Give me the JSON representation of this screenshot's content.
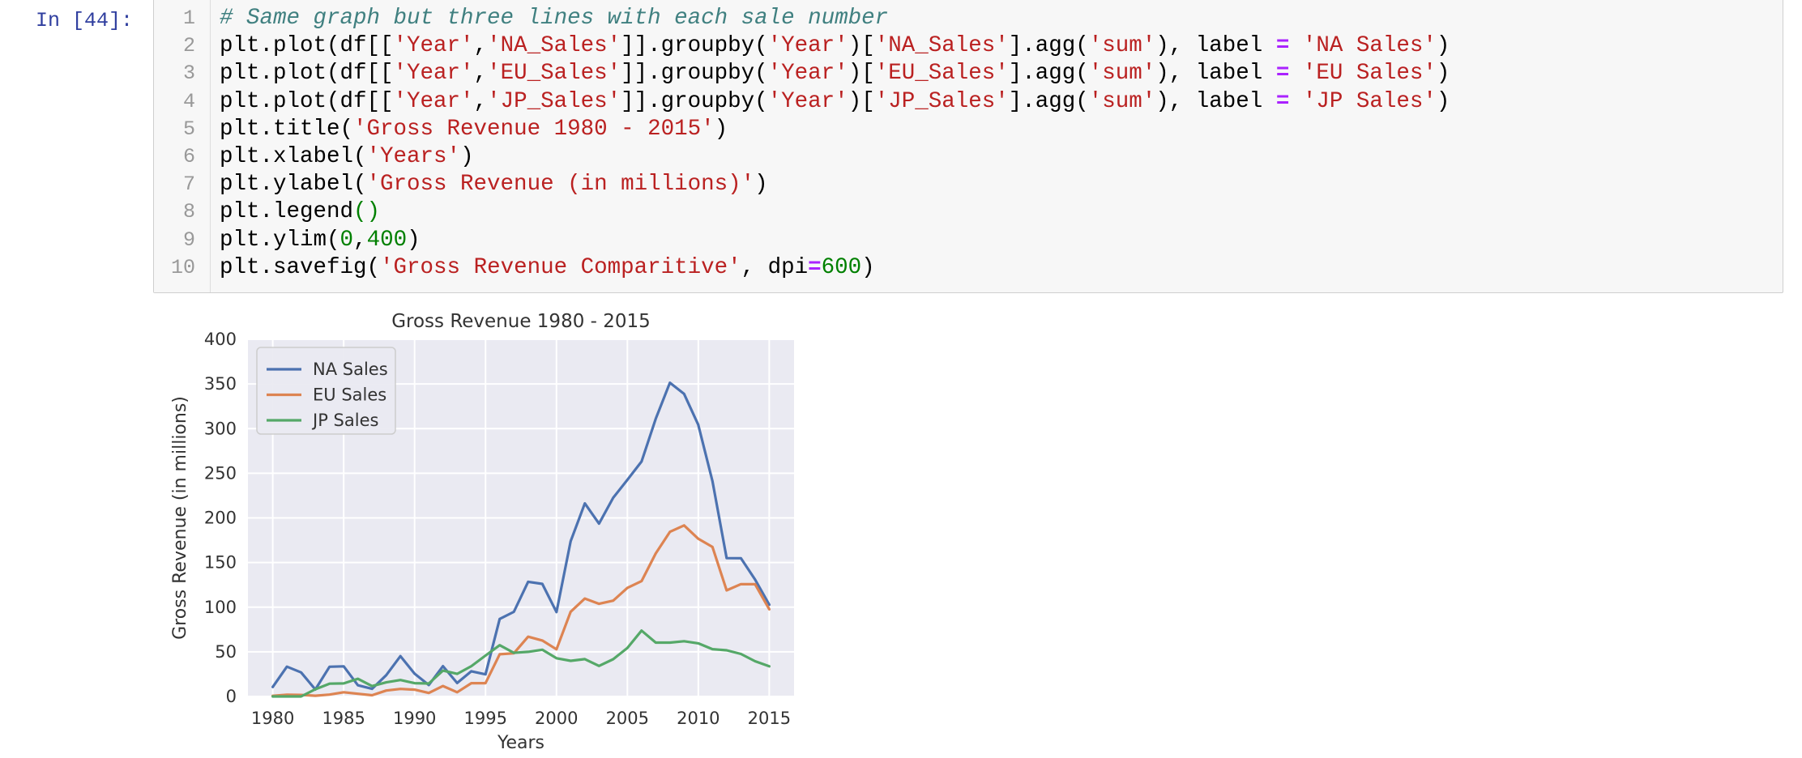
{
  "cell": {
    "prompt": "In [44]:",
    "line_numbers": [
      "1",
      "2",
      "3",
      "4",
      "5",
      "6",
      "7",
      "8",
      "9",
      "10"
    ],
    "code_lines": [
      [
        {
          "t": "comment",
          "v": "# Same graph but three lines with each sale number"
        }
      ],
      [
        {
          "t": "plain",
          "v": "plt.plot(df[["
        },
        {
          "t": "str",
          "v": "'Year'"
        },
        {
          "t": "plain",
          "v": ","
        },
        {
          "t": "str",
          "v": "'NA_Sales'"
        },
        {
          "t": "plain",
          "v": "]].groupby("
        },
        {
          "t": "str",
          "v": "'Year'"
        },
        {
          "t": "plain",
          "v": ")["
        },
        {
          "t": "str",
          "v": "'NA_Sales'"
        },
        {
          "t": "plain",
          "v": "].agg("
        },
        {
          "t": "str",
          "v": "'sum'"
        },
        {
          "t": "plain",
          "v": "), label "
        },
        {
          "t": "op",
          "v": "="
        },
        {
          "t": "plain",
          "v": " "
        },
        {
          "t": "str",
          "v": "'NA Sales'"
        },
        {
          "t": "plain",
          "v": ")"
        }
      ],
      [
        {
          "t": "plain",
          "v": "plt.plot(df[["
        },
        {
          "t": "str",
          "v": "'Year'"
        },
        {
          "t": "plain",
          "v": ","
        },
        {
          "t": "str",
          "v": "'EU_Sales'"
        },
        {
          "t": "plain",
          "v": "]].groupby("
        },
        {
          "t": "str",
          "v": "'Year'"
        },
        {
          "t": "plain",
          "v": ")["
        },
        {
          "t": "str",
          "v": "'EU_Sales'"
        },
        {
          "t": "plain",
          "v": "].agg("
        },
        {
          "t": "str",
          "v": "'sum'"
        },
        {
          "t": "plain",
          "v": "), label "
        },
        {
          "t": "op",
          "v": "="
        },
        {
          "t": "plain",
          "v": " "
        },
        {
          "t": "str",
          "v": "'EU Sales'"
        },
        {
          "t": "plain",
          "v": ")"
        }
      ],
      [
        {
          "t": "plain",
          "v": "plt.plot(df[["
        },
        {
          "t": "str",
          "v": "'Year'"
        },
        {
          "t": "plain",
          "v": ","
        },
        {
          "t": "str",
          "v": "'JP_Sales'"
        },
        {
          "t": "plain",
          "v": "]].groupby("
        },
        {
          "t": "str",
          "v": "'Year'"
        },
        {
          "t": "plain",
          "v": ")["
        },
        {
          "t": "str",
          "v": "'JP_Sales'"
        },
        {
          "t": "plain",
          "v": "].agg("
        },
        {
          "t": "str",
          "v": "'sum'"
        },
        {
          "t": "plain",
          "v": "), label "
        },
        {
          "t": "op",
          "v": "="
        },
        {
          "t": "plain",
          "v": " "
        },
        {
          "t": "str",
          "v": "'JP Sales'"
        },
        {
          "t": "plain",
          "v": ")"
        }
      ],
      [
        {
          "t": "plain",
          "v": "plt.title("
        },
        {
          "t": "str",
          "v": "'Gross Revenue 1980 - 2015'"
        },
        {
          "t": "plain",
          "v": ")"
        }
      ],
      [
        {
          "t": "plain",
          "v": "plt.xlabel("
        },
        {
          "t": "str",
          "v": "'Years'"
        },
        {
          "t": "plain",
          "v": ")"
        }
      ],
      [
        {
          "t": "plain",
          "v": "plt.ylabel("
        },
        {
          "t": "str",
          "v": "'Gross Revenue (in millions)'"
        },
        {
          "t": "plain",
          "v": ")"
        }
      ],
      [
        {
          "t": "plain",
          "v": "plt.legend"
        },
        {
          "t": "paren",
          "v": "()"
        }
      ],
      [
        {
          "t": "plain",
          "v": "plt.ylim("
        },
        {
          "t": "num",
          "v": "0"
        },
        {
          "t": "plain",
          "v": ","
        },
        {
          "t": "num",
          "v": "400"
        },
        {
          "t": "plain",
          "v": ")"
        }
      ],
      [
        {
          "t": "plain",
          "v": "plt.savefig("
        },
        {
          "t": "str",
          "v": "'Gross Revenue Comparitive'"
        },
        {
          "t": "plain",
          "v": ", dpi"
        },
        {
          "t": "op",
          "v": "="
        },
        {
          "t": "num",
          "v": "600"
        },
        {
          "t": "plain",
          "v": ")"
        }
      ]
    ]
  },
  "chart_data": {
    "type": "line",
    "title": "Gross Revenue 1980 - 2015",
    "xlabel": "Years",
    "ylabel": "Gross Revenue (in millions)",
    "xlim": [
      1978.25,
      2016.75
    ],
    "ylim": [
      0,
      400
    ],
    "xticks": [
      1980,
      1985,
      1990,
      1995,
      2000,
      2005,
      2010,
      2015
    ],
    "yticks": [
      0,
      50,
      100,
      150,
      200,
      250,
      300,
      350,
      400
    ],
    "grid": true,
    "legend_position": "upper-left",
    "background": "#eaeaf2",
    "x": [
      1980,
      1981,
      1982,
      1983,
      1984,
      1985,
      1986,
      1987,
      1988,
      1989,
      1990,
      1991,
      1992,
      1993,
      1994,
      1995,
      1996,
      1997,
      1998,
      1999,
      2000,
      2001,
      2002,
      2003,
      2004,
      2005,
      2006,
      2007,
      2008,
      2009,
      2010,
      2011,
      2012,
      2013,
      2014,
      2015
    ],
    "series": [
      {
        "name": "NA Sales",
        "color": "#4c72b0",
        "values": [
          10.6,
          33.4,
          26.9,
          7.8,
          33.3,
          33.7,
          12.5,
          8.5,
          23.9,
          45.2,
          25.5,
          12.8,
          33.9,
          15.1,
          28.2,
          24.8,
          86.8,
          94.8,
          128.4,
          126.1,
          94.5,
          173.9,
          216.2,
          193.6,
          222.6,
          242.6,
          263.1,
          311.0,
          351.4,
          338.9,
          304.2,
          241.2,
          154.9,
          154.8,
          131.0,
          102.8
        ]
      },
      {
        "name": "EU Sales",
        "color": "#dd8452",
        "values": [
          0.7,
          1.9,
          1.7,
          0.8,
          2.1,
          4.7,
          3.0,
          1.4,
          6.6,
          8.4,
          7.6,
          3.9,
          11.7,
          4.7,
          14.9,
          14.9,
          47.3,
          48.3,
          66.9,
          62.7,
          52.8,
          94.9,
          109.7,
          103.8,
          107.3,
          121.6,
          129.2,
          160.2,
          184.4,
          191.6,
          176.6,
          167.4,
          118.8,
          125.8,
          125.7,
          97.7
        ]
      },
      {
        "name": "JP Sales",
        "color": "#55a868",
        "values": [
          0.0,
          0.0,
          0.0,
          8.1,
          14.3,
          14.6,
          19.8,
          11.6,
          15.8,
          18.4,
          14.9,
          14.5,
          28.9,
          25.3,
          33.9,
          45.8,
          57.4,
          48.9,
          50.0,
          52.3,
          42.8,
          39.9,
          41.8,
          34.2,
          41.7,
          54.3,
          73.7,
          60.3,
          60.3,
          61.9,
          59.5,
          53.0,
          51.7,
          47.6,
          39.5,
          33.7
        ]
      }
    ]
  }
}
